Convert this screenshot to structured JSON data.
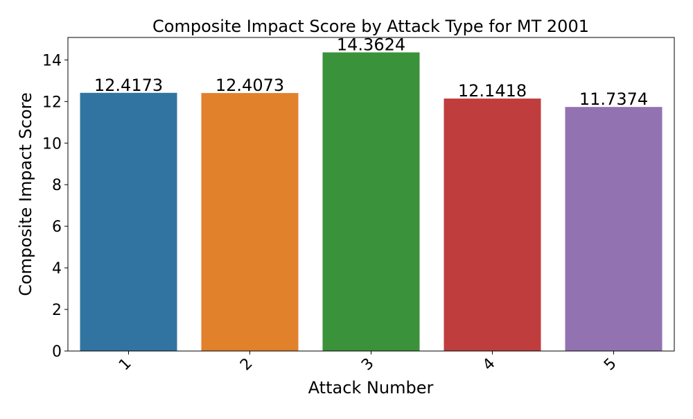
{
  "chart_data": {
    "type": "bar",
    "title": "Composite Impact Score by Attack Type for MT 2001",
    "xlabel": "Attack Number",
    "ylabel": "Composite Impact Score",
    "categories": [
      "1",
      "2",
      "3",
      "4",
      "5"
    ],
    "values": [
      12.4173,
      12.4073,
      14.3624,
      12.1418,
      11.7374
    ],
    "value_labels": [
      "12.4173",
      "12.4073",
      "14.3624",
      "12.1418",
      "11.7374"
    ],
    "colors": [
      "#3274a1",
      "#e1812c",
      "#3a923a",
      "#c03d3e",
      "#9372b2"
    ],
    "ylim": [
      0,
      15.08
    ],
    "yticks": [
      0,
      2,
      4,
      6,
      8,
      10,
      12,
      14
    ],
    "xtick_rotation": "45 degrees",
    "grid": false,
    "legend": "none"
  }
}
